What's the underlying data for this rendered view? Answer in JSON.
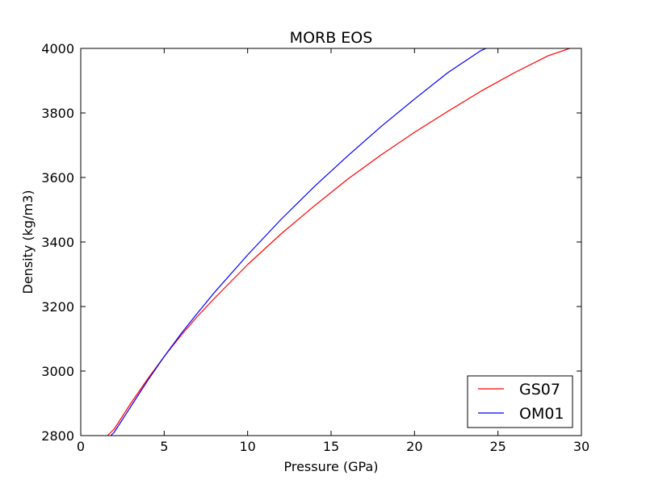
{
  "chart_data": {
    "type": "line",
    "title": "MORB EOS",
    "xlabel": "Pressure (GPa)",
    "ylabel": "Density (kg/m3)",
    "xlim": [
      0,
      30
    ],
    "ylim": [
      2800,
      4000
    ],
    "xticks": [
      0,
      5,
      10,
      15,
      20,
      25,
      30
    ],
    "yticks": [
      2800,
      3000,
      3200,
      3400,
      3600,
      3800,
      4000
    ],
    "grid": false,
    "legend_position": "lower right",
    "series": [
      {
        "name": "GS07",
        "color": "#ff0000",
        "x": [
          1.6,
          2.0,
          3.0,
          4.0,
          5.0,
          6.0,
          7.0,
          8.0,
          10.0,
          12.0,
          14.0,
          16.0,
          18.0,
          20.0,
          22.0,
          24.0,
          26.0,
          28.0,
          29.3
        ],
        "y": [
          2800,
          2820,
          2900,
          2975,
          3045,
          3110,
          3170,
          3225,
          3330,
          3425,
          3512,
          3595,
          3670,
          3740,
          3805,
          3868,
          3925,
          3977,
          4000
        ]
      },
      {
        "name": "OM01",
        "color": "#0000ff",
        "x": [
          1.8,
          2.0,
          3.0,
          4.0,
          5.0,
          6.0,
          7.0,
          8.0,
          10.0,
          12.0,
          14.0,
          16.0,
          18.0,
          20.0,
          22.0,
          24.0,
          24.3
        ],
        "y": [
          2800,
          2810,
          2890,
          2970,
          3045,
          3115,
          3180,
          3243,
          3360,
          3470,
          3572,
          3667,
          3758,
          3843,
          3925,
          3994,
          4000
        ]
      }
    ]
  }
}
